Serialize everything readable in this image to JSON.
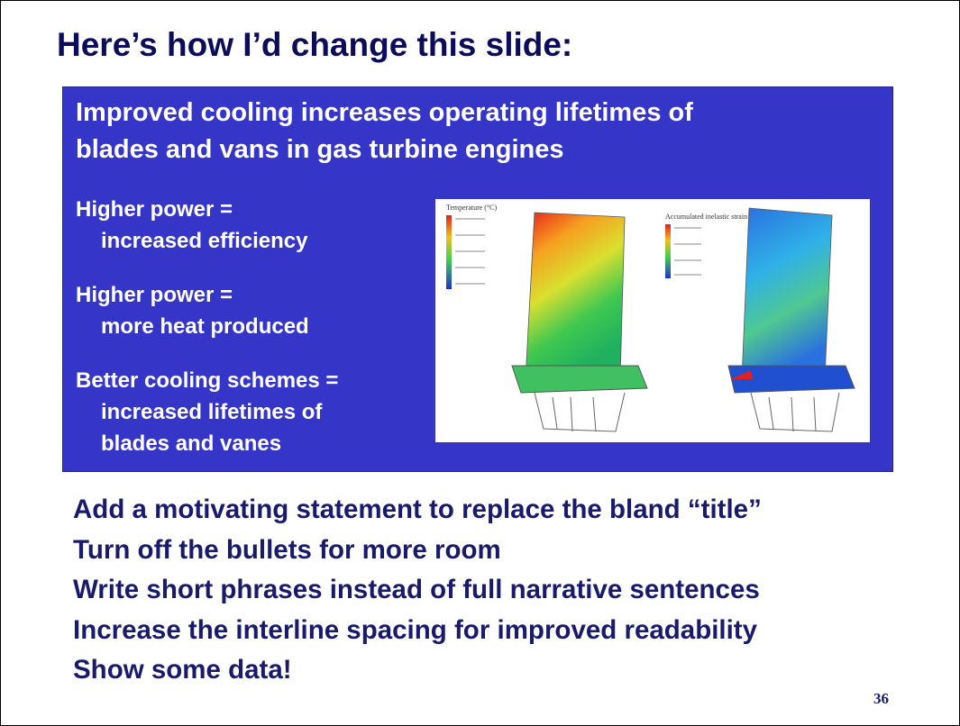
{
  "slide": {
    "title": "Here’s how I’d change this slide:",
    "box": {
      "heading": [
        "Improved cooling increases operating lifetimes of",
        "blades and vans in gas turbine engines"
      ],
      "items": [
        [
          "Higher power =",
          "increased efficiency"
        ],
        [
          "Higher power =",
          "more heat produced"
        ],
        [
          "Better cooling schemes =",
          "increased lifetimes of",
          "blades and vanes"
        ]
      ],
      "figure": {
        "left_label": "Temperature (°C)",
        "right_label": "Accumulated inelastic strain"
      }
    },
    "notes": [
      "Add a motivating statement to replace the bland “title”",
      "Turn off the bullets for more room",
      "Write short phrases instead of full narrative sentences",
      "Increase the interline spacing for improved readability",
      "Show some data!"
    ],
    "page_number": "36"
  }
}
